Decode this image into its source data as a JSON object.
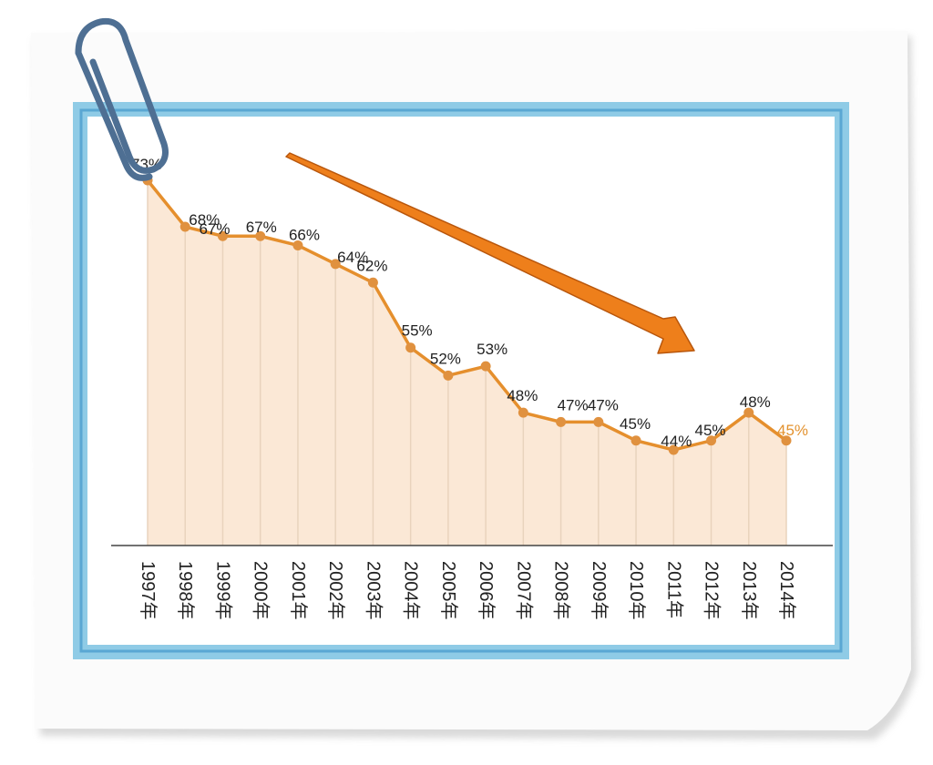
{
  "colors": {
    "paper": "#fbfbfb",
    "paper_shadow": "#c9c9c9",
    "frame_outer": "#8fcbe6",
    "frame_inner": "#5aa7d3",
    "panel": "#ffffff",
    "line": "#e58f2d",
    "marker": "#e0913f",
    "fill": "#fbe8d6",
    "drop": "#e9d3bd",
    "baseline": "#444444",
    "label": "#222222",
    "last_label": "#e3922f",
    "arrow": "#ee7f1b",
    "arrow_edge": "#b8560c",
    "clip": "#4e6f93"
  },
  "icons": {
    "decoration": "paperclip-icon",
    "trend": "down-arrow-icon"
  },
  "chart_data": {
    "type": "area",
    "title": "",
    "xlabel": "",
    "ylabel": "",
    "x": [
      "1997年",
      "1998年",
      "1999年",
      "2000年",
      "2001年",
      "2002年",
      "2003年",
      "2004年",
      "2005年",
      "2006年",
      "2007年",
      "2008年",
      "2009年",
      "2010年",
      "2011年",
      "2012年",
      "2013年",
      "2014年"
    ],
    "values": [
      73,
      68,
      67,
      67,
      66,
      64,
      62,
      55,
      52,
      53,
      48,
      47,
      47,
      45,
      44,
      45,
      48,
      45
    ],
    "value_labels": [
      "73%",
      "68%",
      "67%",
      "67%",
      "66%",
      "64%",
      "62%",
      "55%",
      "52%",
      "53%",
      "48%",
      "47%",
      "47%",
      "45%",
      "44%",
      "45%",
      "48%",
      "45%"
    ],
    "ylim": [
      0,
      80
    ],
    "grid": false,
    "legend": "none",
    "annotation": "downward trend arrow"
  }
}
